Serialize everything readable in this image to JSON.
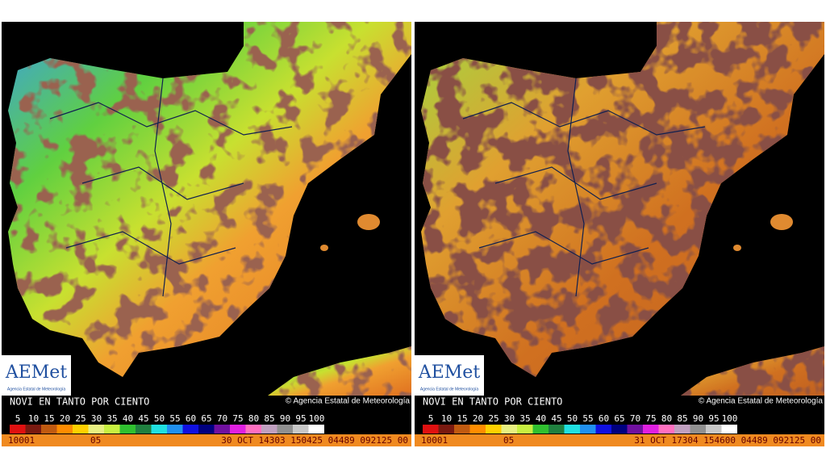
{
  "panels": [
    {
      "logo": {
        "name": "AEMet",
        "subtitle": "Agencia Estatal de Meteorología"
      },
      "title": "NOVI EN TANTO POR CIENTO",
      "credit": "© Agencia Estatal de Meteorología",
      "scale": {
        "labels": [
          5,
          10,
          15,
          20,
          25,
          30,
          35,
          40,
          45,
          50,
          55,
          60,
          65,
          70,
          75,
          80,
          85,
          90,
          95,
          100
        ],
        "colors": [
          "#e01010",
          "#7a1a10",
          "#c05a10",
          "#ff8c00",
          "#ffd000",
          "#e8f080",
          "#c8f040",
          "#30c030",
          "#208040",
          "#20e0e0",
          "#2090f0",
          "#1010e0",
          "#000080",
          "#7010a0",
          "#e020e0",
          "#ff70c0",
          "#c0a0c0",
          "#909090",
          "#c8c8c8",
          "#ffffff"
        ]
      },
      "footer": [
        "10001",
        "05",
        "30 OCT 14303 150425 04489 092125 00"
      ]
    },
    {
      "logo": {
        "name": "AEMet",
        "subtitle": "Agencia Estatal de Meteorología"
      },
      "title": "NOVI EN TANTO POR CIENTO",
      "credit": "© Agencia Estatal de Meteorología",
      "scale": {
        "labels": [
          5,
          10,
          15,
          20,
          25,
          30,
          35,
          40,
          45,
          50,
          55,
          60,
          65,
          70,
          75,
          80,
          85,
          90,
          95,
          100
        ],
        "colors": [
          "#e01010",
          "#7a1a10",
          "#c05a10",
          "#ff8c00",
          "#ffd000",
          "#e8f080",
          "#c8f040",
          "#30c030",
          "#208040",
          "#20e0e0",
          "#2090f0",
          "#1010e0",
          "#000080",
          "#7010a0",
          "#e020e0",
          "#ff70c0",
          "#c0a0c0",
          "#909090",
          "#c8c8c8",
          "#ffffff"
        ]
      },
      "footer": [
        "10001",
        "05",
        "31 OCT 17304 154600 04489 092125 00"
      ]
    }
  ]
}
